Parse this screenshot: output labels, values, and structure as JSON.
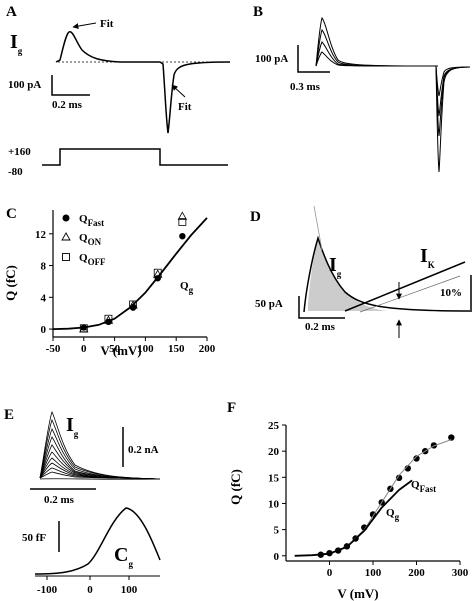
{
  "panels": {
    "A": {
      "letter": "A",
      "trace_label": "I",
      "trace_label_sub": "g",
      "fit_label_top": "Fit",
      "fit_label_bottom": "Fit",
      "scale_current": "100 pA",
      "scale_time": "0.2 ms",
      "voltage_high": "+160",
      "voltage_low": "-80"
    },
    "B": {
      "letter": "B",
      "scale_current": "100 pA",
      "scale_time": "0.3 ms"
    },
    "C": {
      "letter": "C",
      "ylabel": "Q (fC)",
      "xlabel": "V (mV)",
      "curve_label": "Q",
      "curve_label_sub": "g",
      "legend": [
        {
          "main": "Q",
          "sub": "Fast",
          "marker": "filled-circle"
        },
        {
          "main": "Q",
          "sub": "ON",
          "marker": "open-triangle"
        },
        {
          "main": "Q",
          "sub": "OFF",
          "marker": "open-square"
        }
      ]
    },
    "D": {
      "letter": "D",
      "label_ig": "I",
      "label_ig_sub": "g",
      "label_ik": "I",
      "label_ik_sub": "K",
      "scale_current": "50 pA",
      "scale_time": "0.2 ms",
      "scale_percent": "10%"
    },
    "E": {
      "letter": "E",
      "trace_label": "I",
      "trace_label_sub": "g",
      "scale_current": "0.2 nA",
      "scale_time": "0.2 ms",
      "scale_cap": "50 fF",
      "cap_label": "C",
      "cap_label_sub": "g",
      "xticks": [
        "-100",
        "0",
        "100"
      ]
    },
    "F": {
      "letter": "F",
      "ylabel": "Q (fC)",
      "xlabel": "V (mV)",
      "label_fast": "Q",
      "label_fast_sub": "Fast",
      "label_g": "Q",
      "label_g_sub": "g"
    }
  },
  "chart_data": [
    {
      "type": "scatter",
      "panel": "C",
      "xlabel": "V (mV)",
      "ylabel": "Q (fC)",
      "xlim": [
        -50,
        200
      ],
      "ylim": [
        -1,
        15
      ],
      "xticks": [
        -50,
        0,
        50,
        100,
        150,
        200
      ],
      "yticks": [
        0,
        4,
        8,
        12
      ],
      "series": [
        {
          "name": "Q_Fast",
          "marker": "filled-circle",
          "x": [
            0,
            40,
            80,
            120,
            160
          ],
          "y": [
            0.2,
            0.9,
            2.7,
            6.4,
            11.7
          ]
        },
        {
          "name": "Q_ON",
          "marker": "open-triangle",
          "x": [
            0,
            40,
            80,
            120,
            160
          ],
          "y": [
            0.0,
            1.1,
            3.0,
            6.9,
            14.2
          ]
        },
        {
          "name": "Q_OFF",
          "marker": "open-square",
          "x": [
            0,
            40,
            80,
            120,
            160
          ],
          "y": [
            0.1,
            1.3,
            3.1,
            7.1,
            13.5
          ]
        },
        {
          "name": "Q_g",
          "marker": "line",
          "x": [
            -50,
            -25,
            0,
            25,
            50,
            75,
            100,
            125,
            150,
            175,
            200
          ],
          "y": [
            0.0,
            0.05,
            0.2,
            0.55,
            1.3,
            2.7,
            4.6,
            7.0,
            9.5,
            11.9,
            14.0
          ]
        }
      ]
    },
    {
      "type": "scatter",
      "panel": "F",
      "xlabel": "V (mV)",
      "ylabel": "Q (fC)",
      "xlim": [
        -100,
        300
      ],
      "ylim": [
        -1,
        25
      ],
      "xticks": [
        0,
        100,
        200,
        300
      ],
      "yticks": [
        0,
        5,
        10,
        15,
        20,
        25
      ],
      "series": [
        {
          "name": "Q_Fast",
          "marker": "filled-circle",
          "x": [
            -20,
            0,
            20,
            40,
            60,
            80,
            100,
            120,
            140,
            160,
            180,
            200,
            220,
            240,
            280
          ],
          "y": [
            0.2,
            0.5,
            1.0,
            1.8,
            3.3,
            5.4,
            7.9,
            10.2,
            12.8,
            14.9,
            16.7,
            18.6,
            20.0,
            21.1,
            22.6
          ]
        },
        {
          "name": "Q_Fast fit",
          "marker": "line",
          "x": [
            -80,
            -40,
            0,
            40,
            80,
            120,
            160,
            200,
            240,
            280
          ],
          "y": [
            0.0,
            0.1,
            0.5,
            1.8,
            5.0,
            10.2,
            15.4,
            19.0,
            21.0,
            22.2
          ]
        },
        {
          "name": "Q_g",
          "marker": "line",
          "x": [
            -80,
            -40,
            0,
            40,
            80,
            120,
            160,
            190
          ],
          "y": [
            0.0,
            0.1,
            0.4,
            1.7,
            4.8,
            9.2,
            12.6,
            14.4
          ]
        }
      ]
    }
  ]
}
